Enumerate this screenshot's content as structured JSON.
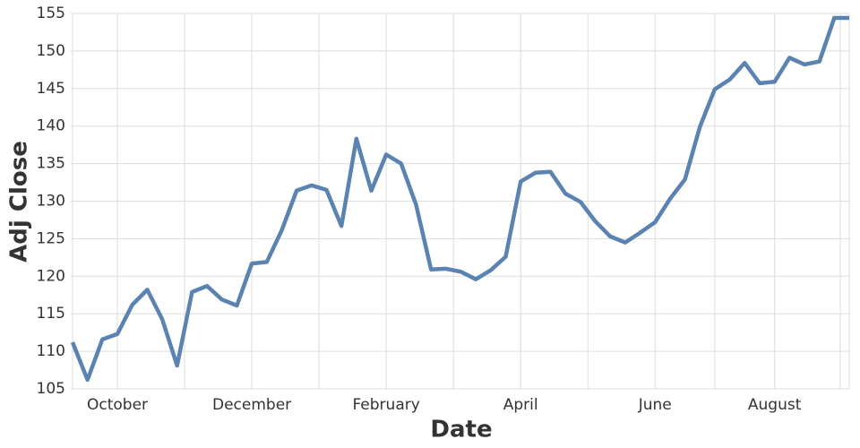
{
  "chart_data": {
    "type": "line",
    "x_label": "Date",
    "y_label": "Adj Close",
    "categories": [
      null,
      null,
      null,
      "October",
      null,
      null,
      null,
      null,
      null,
      null,
      null,
      null,
      "December",
      null,
      null,
      null,
      null,
      null,
      null,
      null,
      null,
      "February",
      null,
      null,
      null,
      null,
      null,
      null,
      null,
      null,
      "April",
      null,
      null,
      null,
      null,
      null,
      null,
      null,
      null,
      "June",
      null,
      null,
      null,
      null,
      null,
      null,
      null,
      "August",
      null,
      null,
      null,
      null,
      null
    ],
    "series": [
      {
        "name": "Adj Close",
        "color": "#5b83b1",
        "values": [
          111.2,
          106.2,
          111.6,
          112.3,
          116.2,
          118.2,
          114.3,
          108.1,
          117.9,
          118.7,
          116.9,
          116.1,
          121.7,
          121.9,
          126.1,
          131.4,
          132.1,
          131.5,
          126.7,
          138.3,
          131.4,
          136.2,
          135.0,
          129.5,
          120.9,
          121.0,
          120.6,
          119.6,
          120.8,
          122.6,
          132.6,
          133.8,
          133.9,
          131.0,
          129.9,
          127.3,
          125.3,
          124.5,
          125.8,
          127.2,
          130.3,
          132.9,
          139.9,
          144.9,
          146.2,
          148.4,
          145.7,
          145.9,
          149.1,
          148.2,
          148.6,
          154.4,
          154.4
        ]
      }
    ],
    "ylim": [
      105,
      155
    ],
    "yticks": [
      105,
      110,
      115,
      120,
      125,
      130,
      135,
      140,
      145,
      150,
      155
    ],
    "grid": true
  }
}
